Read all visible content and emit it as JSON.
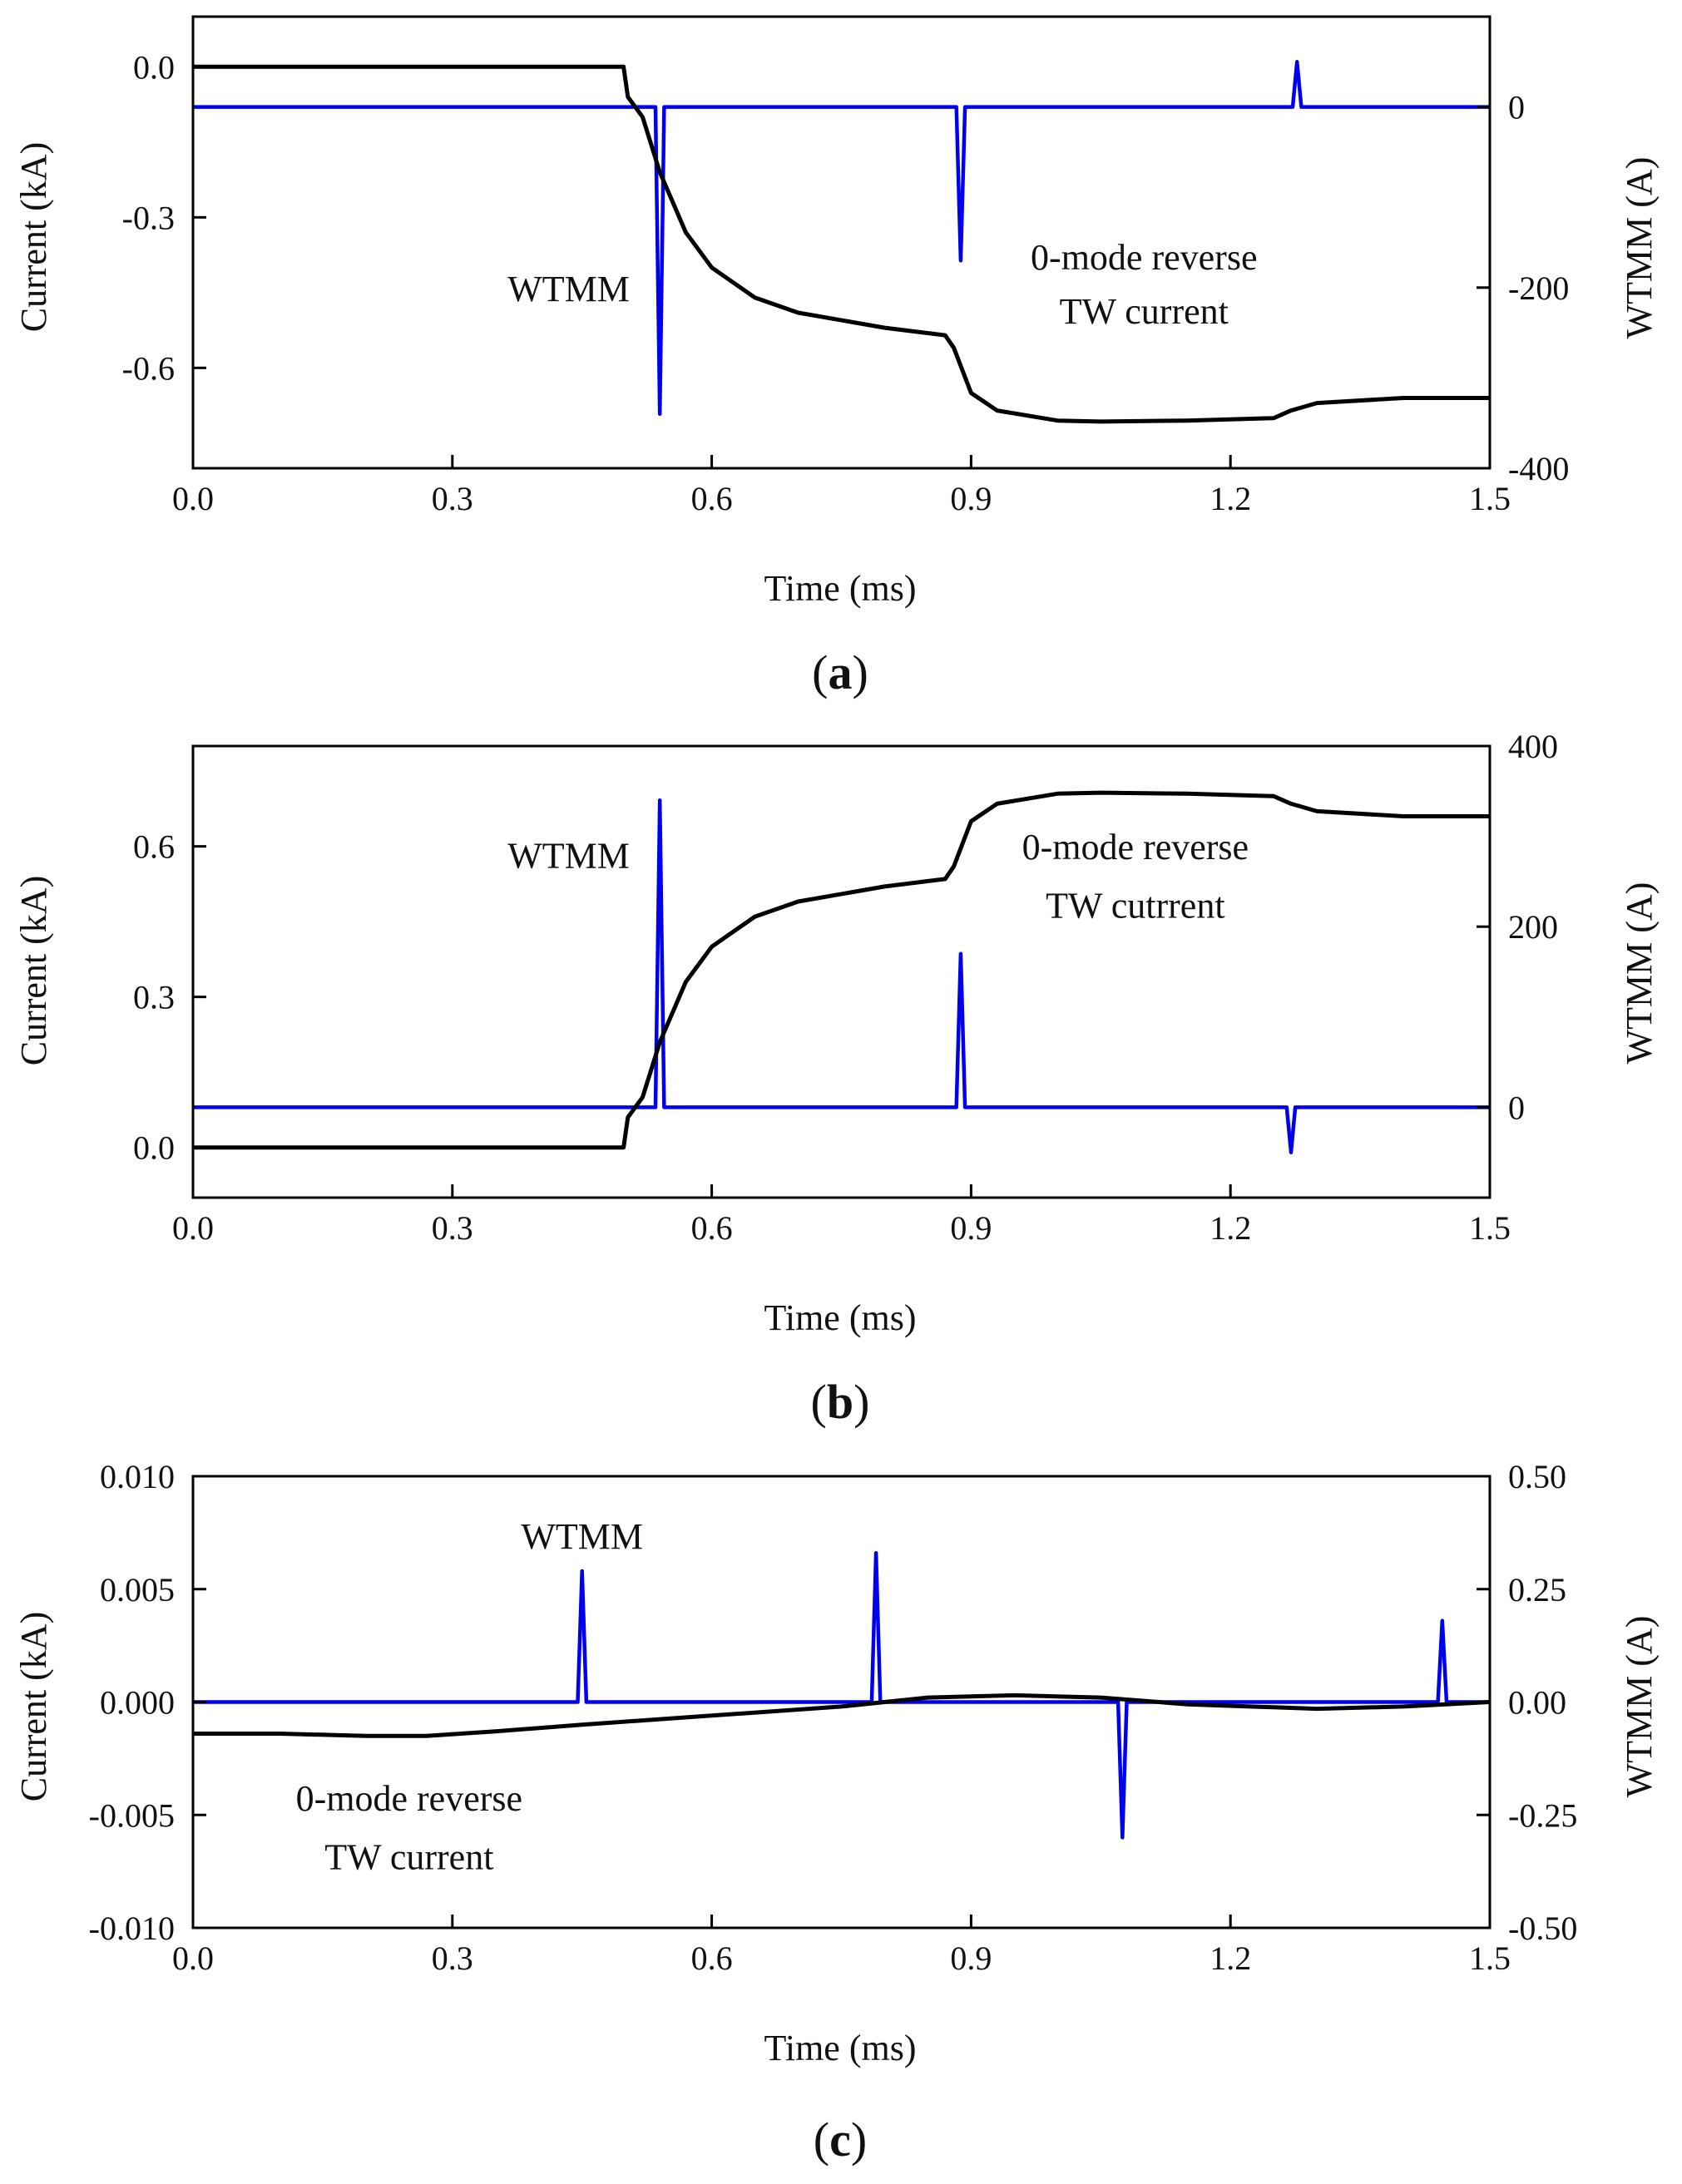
{
  "colors": {
    "current_line": "#000000",
    "wtmm_line": "#0000ee",
    "axes": "#000000",
    "background": "#ffffff"
  },
  "chart_data": [
    {
      "type": "line",
      "panel": "a",
      "panel_label": {
        "open": "(",
        "letter": "a",
        "close": ")"
      },
      "xlabel": "Time (ms)",
      "ylabel": "Current (kA)",
      "y2label": "WTMM (A)",
      "xlim": [
        0.0,
        1.5
      ],
      "ylim": [
        -0.8,
        0.1
      ],
      "y2lim": [
        -400,
        100
      ],
      "xticks": [
        0.0,
        0.3,
        0.6,
        0.9,
        1.2,
        1.5
      ],
      "xtick_labels": [
        "0.0",
        "0.3",
        "0.6",
        "0.9",
        "1.2",
        "1.5"
      ],
      "yticks": [
        0.0,
        -0.3,
        -0.6
      ],
      "ytick_labels": [
        "0.0",
        "-0.3",
        "-0.6"
      ],
      "y2ticks": [
        0,
        -200,
        -400
      ],
      "y2tick_labels": [
        "0",
        "-200",
        "-400"
      ],
      "grid": false,
      "annotations": [
        {
          "text": "WTMM",
          "anchor": "end",
          "x": 0.505,
          "y_rel": 0.63
        },
        {
          "text": "0-mode reverse",
          "anchor": "middle",
          "x": 1.1,
          "y_rel": 0.56
        },
        {
          "text": "TW current",
          "anchor": "middle",
          "x": 1.1,
          "y_rel": 0.68
        }
      ],
      "series": [
        {
          "name": "0-mode reverse TW current",
          "axis": "left",
          "color": "#000000",
          "x": [
            0.0,
            0.2,
            0.35,
            0.498,
            0.503,
            0.52,
            0.54,
            0.57,
            0.6,
            0.65,
            0.7,
            0.8,
            0.87,
            0.88,
            0.9,
            0.93,
            1.0,
            1.05,
            1.15,
            1.25,
            1.27,
            1.3,
            1.4,
            1.5
          ],
          "values": [
            0.0,
            0.0,
            0.0,
            0.0,
            -0.06,
            -0.1,
            -0.21,
            -0.33,
            -0.4,
            -0.46,
            -0.49,
            -0.52,
            -0.535,
            -0.56,
            -0.65,
            -0.685,
            -0.705,
            -0.707,
            -0.705,
            -0.7,
            -0.685,
            -0.67,
            -0.66,
            -0.66
          ]
        },
        {
          "name": "WTMM",
          "axis": "right",
          "color": "#0000ee",
          "x": [
            0.0,
            0.535,
            0.54,
            0.545,
            0.883,
            0.888,
            0.893,
            1.272,
            1.277,
            1.282,
            1.5
          ],
          "values": [
            0,
            0,
            -340,
            0,
            0,
            -170,
            0,
            0,
            50,
            0,
            0
          ]
        }
      ]
    },
    {
      "type": "line",
      "panel": "b",
      "panel_label": {
        "open": "(",
        "letter": "b",
        "close": ")"
      },
      "xlabel": "Time (ms)",
      "ylabel": "Current (kA)",
      "y2label": "WTMM (A)",
      "xlim": [
        0.0,
        1.5
      ],
      "ylim": [
        -0.1,
        0.8
      ],
      "y2lim": [
        -100,
        400
      ],
      "xticks": [
        0.0,
        0.3,
        0.6,
        0.9,
        1.2,
        1.5
      ],
      "xtick_labels": [
        "0.0",
        "0.3",
        "0.6",
        "0.9",
        "1.2",
        "1.5"
      ],
      "yticks": [
        0.0,
        0.3,
        0.6
      ],
      "ytick_labels": [
        "0.0",
        "0.3",
        "0.6"
      ],
      "y2ticks": [
        0,
        200,
        400
      ],
      "y2tick_labels": [
        "0",
        "200",
        "400"
      ],
      "grid": false,
      "annotations": [
        {
          "text": "WTMM",
          "anchor": "end",
          "x": 0.505,
          "y_rel": 0.27
        },
        {
          "text": "0-mode reverse",
          "anchor": "middle",
          "x": 1.09,
          "y_rel": 0.25
        },
        {
          "text": "TW cutrrent",
          "anchor": "middle",
          "x": 1.09,
          "y_rel": 0.38
        }
      ],
      "series": [
        {
          "name": "0-mode reverse TW current",
          "axis": "left",
          "color": "#000000",
          "x": [
            0.0,
            0.2,
            0.35,
            0.498,
            0.503,
            0.52,
            0.54,
            0.57,
            0.6,
            0.65,
            0.7,
            0.8,
            0.87,
            0.88,
            0.9,
            0.93,
            1.0,
            1.05,
            1.15,
            1.25,
            1.27,
            1.3,
            1.4,
            1.5
          ],
          "values": [
            0.0,
            0.0,
            0.0,
            0.0,
            0.06,
            0.1,
            0.21,
            0.33,
            0.4,
            0.46,
            0.49,
            0.52,
            0.535,
            0.56,
            0.65,
            0.685,
            0.705,
            0.707,
            0.705,
            0.7,
            0.685,
            0.67,
            0.66,
            0.66
          ]
        },
        {
          "name": "WTMM",
          "axis": "right",
          "color": "#0000ee",
          "x": [
            0.0,
            0.535,
            0.54,
            0.545,
            0.883,
            0.888,
            0.893,
            1.265,
            1.27,
            1.275,
            1.5
          ],
          "values": [
            0,
            0,
            340,
            0,
            0,
            170,
            0,
            0,
            -50,
            0,
            0
          ]
        }
      ]
    },
    {
      "type": "line",
      "panel": "c",
      "panel_label": {
        "open": "(",
        "letter": "c",
        "close": ")"
      },
      "xlabel": "Time (ms)",
      "ylabel": "Current (kA)",
      "y2label": "WTMM (A)",
      "xlim": [
        0.0,
        1.5
      ],
      "ylim": [
        -0.01,
        0.01
      ],
      "y2lim": [
        -0.5,
        0.5
      ],
      "xticks": [
        0.0,
        0.3,
        0.6,
        0.9,
        1.2,
        1.5
      ],
      "xtick_labels": [
        "0.0",
        "0.3",
        "0.6",
        "0.9",
        "1.2",
        "1.5"
      ],
      "yticks": [
        0.01,
        0.005,
        0.0,
        -0.005,
        -0.01
      ],
      "ytick_labels": [
        "0.010",
        "0.005",
        "0.000",
        "-0.005",
        "-0.010"
      ],
      "y2ticks": [
        0.5,
        0.25,
        0.0,
        -0.25,
        -0.5
      ],
      "y2tick_labels": [
        "0.50",
        "0.25",
        "0.00",
        "-0.25",
        "-0.50"
      ],
      "grid": false,
      "annotations": [
        {
          "text": "WTMM",
          "anchor": "middle",
          "x": 0.45,
          "y_rel": 0.16
        },
        {
          "text": "0-mode reverse",
          "anchor": "middle",
          "x": 0.25,
          "y_rel": 0.74
        },
        {
          "text": "TW current",
          "anchor": "middle",
          "x": 0.25,
          "y_rel": 0.87
        }
      ],
      "series": [
        {
          "name": "0-mode reverse TW current",
          "axis": "left",
          "color": "#000000",
          "x": [
            0.0,
            0.1,
            0.2,
            0.27,
            0.35,
            0.45,
            0.6,
            0.75,
            0.85,
            0.95,
            1.05,
            1.15,
            1.3,
            1.4,
            1.5
          ],
          "values": [
            -0.0014,
            -0.0014,
            -0.0015,
            -0.0015,
            -0.0013,
            -0.001,
            -0.0006,
            -0.0002,
            0.0002,
            0.0003,
            0.0002,
            -0.0001,
            -0.0003,
            -0.0002,
            0.0
          ]
        },
        {
          "name": "WTMM",
          "axis": "right",
          "color": "#0000ee",
          "x": [
            0.0,
            0.445,
            0.45,
            0.455,
            0.785,
            0.79,
            0.795,
            1.07,
            1.075,
            1.08,
            1.44,
            1.445,
            1.45,
            1.5
          ],
          "values": [
            0,
            0,
            0.29,
            0,
            0,
            0.33,
            0,
            0,
            -0.3,
            0,
            0,
            0.18,
            0,
            0
          ]
        }
      ]
    }
  ]
}
